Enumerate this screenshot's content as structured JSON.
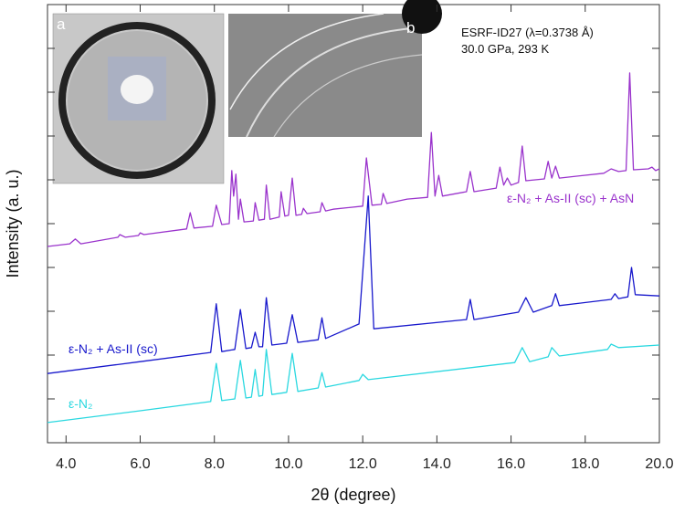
{
  "chart_data": {
    "type": "line",
    "x_label": "2θ (degree)",
    "y_label": "Intensity (a. u.)",
    "xlim": [
      3.5,
      20.0
    ],
    "xticks": [
      {
        "value": 4,
        "label": "4.0"
      },
      {
        "value": 6,
        "label": "6.0"
      },
      {
        "value": 8,
        "label": "8.0"
      },
      {
        "value": 10,
        "label": "10.0"
      },
      {
        "value": 12,
        "label": "12.0"
      },
      {
        "value": 14,
        "label": "14.0"
      },
      {
        "value": 16,
        "label": "16.0"
      },
      {
        "value": 18,
        "label": "18.0"
      },
      {
        "value": 20,
        "label": "20.0"
      }
    ],
    "ylim": [
      0,
      100
    ],
    "yticks": [
      10,
      20,
      30,
      40,
      50,
      60,
      70,
      80,
      90
    ],
    "annotations": [
      "ESRF-ID27 (λ=0.3738 Å)",
      "30.0 GPa, 293 K"
    ],
    "inset_labels": [
      "a",
      "b"
    ],
    "series": [
      {
        "name": "ε-N₂ + As-II (sc) + AsN",
        "color": "#9a33cc",
        "x": [
          3.5,
          4.1,
          4.25,
          4.4,
          5.4,
          5.45,
          5.6,
          5.95,
          6.0,
          6.1,
          7.25,
          7.35,
          7.45,
          7.95,
          8.05,
          8.2,
          8.4,
          8.47,
          8.52,
          8.58,
          8.65,
          8.7,
          8.8,
          9.05,
          9.1,
          9.2,
          9.35,
          9.4,
          9.5,
          9.75,
          9.8,
          9.9,
          10.0,
          10.1,
          10.2,
          10.35,
          10.4,
          10.5,
          10.85,
          10.9,
          11.0,
          11.2,
          12.0,
          12.1,
          12.25,
          12.5,
          12.55,
          12.65,
          13.2,
          13.75,
          13.85,
          13.95,
          14.05,
          14.15,
          14.8,
          14.9,
          15.0,
          15.6,
          15.7,
          15.8,
          15.9,
          16.0,
          16.2,
          16.3,
          16.4,
          16.9,
          17.0,
          17.1,
          17.2,
          17.3,
          18.5,
          18.7,
          18.9,
          19.1,
          19.2,
          19.3,
          19.7,
          19.8,
          19.9,
          20.0
        ],
        "values": [
          44.8,
          45.4,
          46.5,
          45.4,
          46.9,
          47.5,
          46.9,
          47.3,
          47.9,
          47.5,
          48.8,
          52.5,
          49.0,
          49.4,
          54.2,
          49.8,
          50.0,
          62.1,
          56.3,
          61.3,
          51.0,
          55.6,
          50.4,
          50.6,
          54.8,
          50.8,
          51.0,
          58.8,
          51.0,
          51.5,
          57.3,
          51.7,
          51.9,
          60.4,
          51.9,
          52.1,
          53.5,
          52.3,
          52.7,
          54.8,
          52.9,
          53.3,
          54.0,
          65.0,
          54.2,
          54.4,
          56.9,
          54.6,
          55.6,
          56.0,
          70.8,
          56.3,
          61.0,
          56.3,
          57.3,
          61.9,
          57.3,
          58.1,
          62.9,
          58.8,
          60.4,
          58.8,
          59.4,
          67.7,
          59.8,
          60.2,
          64.2,
          60.4,
          63.1,
          60.4,
          61.5,
          62.5,
          61.9,
          62.1,
          84.4,
          62.3,
          62.5,
          62.9,
          62.1,
          62.5
        ]
      },
      {
        "name": "ε-N₂ + As-II (sc)",
        "color": "#1818cc",
        "x": [
          3.5,
          6.0,
          7.9,
          8.05,
          8.2,
          8.55,
          8.7,
          8.85,
          9.0,
          9.1,
          9.2,
          9.3,
          9.4,
          9.55,
          9.95,
          10.1,
          10.25,
          10.8,
          10.9,
          11.0,
          11.9,
          12.15,
          12.3,
          14.8,
          14.9,
          15.0,
          16.2,
          16.4,
          16.6,
          17.1,
          17.2,
          17.3,
          18.7,
          18.8,
          18.9,
          19.15,
          19.25,
          19.35,
          20.0
        ],
        "values": [
          15.8,
          18.5,
          20.6,
          31.7,
          20.8,
          21.3,
          30.4,
          21.5,
          21.7,
          25.2,
          21.9,
          21.9,
          33.1,
          22.3,
          22.7,
          29.2,
          22.9,
          23.5,
          28.5,
          23.8,
          27.1,
          56.3,
          26.0,
          28.1,
          32.7,
          28.1,
          29.8,
          33.1,
          29.8,
          31.3,
          34.0,
          31.3,
          32.7,
          34.0,
          32.9,
          33.3,
          40.0,
          33.8,
          33.5
        ]
      },
      {
        "name": "ε-N₂",
        "color": "#2ad8e0",
        "x": [
          3.5,
          6.0,
          7.9,
          8.05,
          8.2,
          8.55,
          8.7,
          8.85,
          9.0,
          9.1,
          9.2,
          9.3,
          9.4,
          9.55,
          9.95,
          10.1,
          10.25,
          10.8,
          10.9,
          11.0,
          11.9,
          12.0,
          12.15,
          16.1,
          16.3,
          16.5,
          17.0,
          17.1,
          17.3,
          18.6,
          18.7,
          18.9,
          20.0
        ],
        "values": [
          4.6,
          7.3,
          9.4,
          18.1,
          9.6,
          10.0,
          18.8,
          10.2,
          10.4,
          16.7,
          10.6,
          10.8,
          21.3,
          11.0,
          11.5,
          20.4,
          11.7,
          12.5,
          16.0,
          12.7,
          14.2,
          15.6,
          14.4,
          18.3,
          21.7,
          18.5,
          19.6,
          21.7,
          19.8,
          21.3,
          22.5,
          21.7,
          22.3
        ]
      }
    ]
  }
}
